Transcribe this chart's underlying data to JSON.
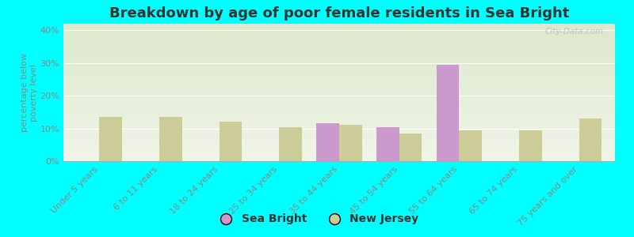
{
  "title": "Breakdown by age of poor female residents in Sea Bright",
  "ylabel": "percentage below\npoverty level",
  "categories": [
    "Under 5 years",
    "6 to 11 years",
    "18 to 24 years",
    "25 to 34 years",
    "35 to 44 years",
    "45 to 54 years",
    "55 to 64 years",
    "65 to 74 years",
    "75 years and over"
  ],
  "sea_bright_values": [
    0,
    0,
    0,
    0,
    11.5,
    10.5,
    29.5,
    0,
    0
  ],
  "new_jersey_values": [
    13.5,
    13.5,
    12.0,
    10.5,
    11.0,
    8.5,
    9.5,
    9.5,
    13.0
  ],
  "sea_bright_color": "#cc99cc",
  "new_jersey_color": "#cccc99",
  "background_color": "#00ffff",
  "plot_bg_top": "#dde8cc",
  "plot_bg_bottom": "#f0f5e8",
  "ylim": [
    0,
    42
  ],
  "yticks": [
    0,
    10,
    20,
    30,
    40
  ],
  "ytick_labels": [
    "0%",
    "10%",
    "20%",
    "30%",
    "40%"
  ],
  "bar_width": 0.38,
  "title_fontsize": 13,
  "axis_label_fontsize": 8,
  "tick_fontsize": 8,
  "legend_fontsize": 10,
  "watermark": "City-Data.com"
}
